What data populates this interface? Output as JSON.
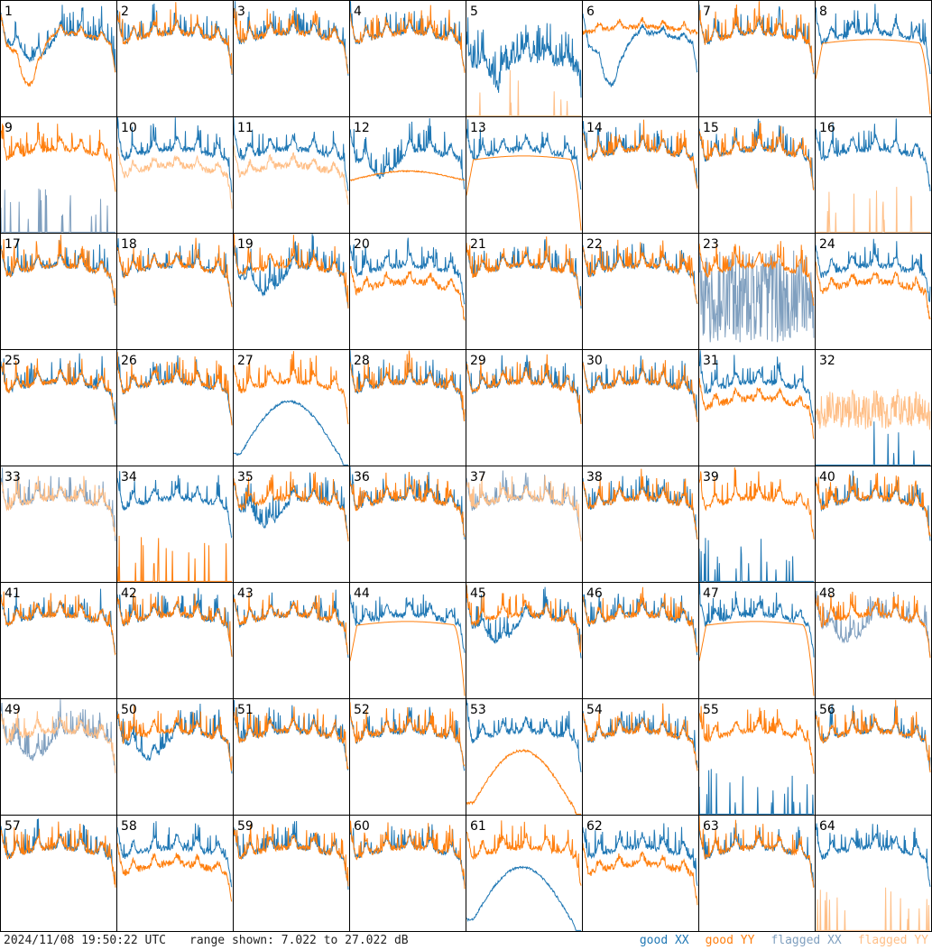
{
  "footer": {
    "timestamp": "2024/11/08 19:50:22 UTC",
    "range_text": "range shown: 7.022 to 27.022 dB"
  },
  "legend": [
    {
      "word": "good",
      "tag": "XX",
      "color": "#1f77b4"
    },
    {
      "word": "good",
      "tag": "YY",
      "color": "#ff7f0e"
    },
    {
      "word": "flagged",
      "tag": "XX",
      "color": "#7f9fbf"
    },
    {
      "word": "flagged",
      "tag": "YY",
      "color": "#ffbf87"
    }
  ],
  "chart_data": {
    "type": "line",
    "layout": "small-multiples 8x8",
    "y_range_db": [
      7.022,
      27.022
    ],
    "grid": false,
    "legend_position": "bottom-right",
    "panels": [
      {
        "id": "1",
        "xx": "good",
        "yy": "good",
        "xx_shape": "dip_mild",
        "yy_shape": "dip_deep"
      },
      {
        "id": "2",
        "xx": "good",
        "yy": "good",
        "xx_shape": "normal",
        "yy_shape": "normal"
      },
      {
        "id": "3",
        "xx": "good",
        "yy": "good",
        "xx_shape": "normal",
        "yy_shape": "normal"
      },
      {
        "id": "4",
        "xx": "good",
        "yy": "good",
        "xx_shape": "normal",
        "yy_shape": "normal"
      },
      {
        "id": "5",
        "xx": "good",
        "yy": "flagged",
        "xx_shape": "dip_noisy",
        "yy_shape": "spikes_low"
      },
      {
        "id": "6",
        "xx": "good",
        "yy": "good",
        "xx_shape": "dip_deep",
        "yy_shape": "high"
      },
      {
        "id": "7",
        "xx": "good",
        "yy": "good",
        "xx_shape": "normal",
        "yy_shape": "normal"
      },
      {
        "id": "8",
        "xx": "good",
        "yy": "good",
        "xx_shape": "normal",
        "yy_shape": "smooth_rolloff"
      },
      {
        "id": "9",
        "xx": "flagged",
        "yy": "good",
        "xx_shape": "spikes_low",
        "yy_shape": "normal"
      },
      {
        "id": "10",
        "xx": "good",
        "yy": "flagged",
        "xx_shape": "normal",
        "yy_shape": "low_band"
      },
      {
        "id": "11",
        "xx": "good",
        "yy": "flagged",
        "xx_shape": "normal",
        "yy_shape": "low_band"
      },
      {
        "id": "12",
        "xx": "good",
        "yy": "good",
        "xx_shape": "dip_mild",
        "yy_shape": "smooth_flat"
      },
      {
        "id": "13",
        "xx": "good",
        "yy": "good",
        "xx_shape": "normal",
        "yy_shape": "smooth_rolloff"
      },
      {
        "id": "14",
        "xx": "good",
        "yy": "good",
        "xx_shape": "normal",
        "yy_shape": "normal"
      },
      {
        "id": "15",
        "xx": "good",
        "yy": "good",
        "xx_shape": "normal",
        "yy_shape": "normal"
      },
      {
        "id": "16",
        "xx": "good",
        "yy": "flagged",
        "xx_shape": "normal",
        "yy_shape": "spikes_low"
      },
      {
        "id": "17",
        "xx": "good",
        "yy": "good",
        "xx_shape": "normal",
        "yy_shape": "normal"
      },
      {
        "id": "18",
        "xx": "good",
        "yy": "good",
        "xx_shape": "normal",
        "yy_shape": "normal"
      },
      {
        "id": "19",
        "xx": "good",
        "yy": "good",
        "xx_shape": "dip_mild",
        "yy_shape": "normal"
      },
      {
        "id": "20",
        "xx": "good",
        "yy": "good",
        "xx_shape": "normal",
        "yy_shape": "low_band"
      },
      {
        "id": "21",
        "xx": "good",
        "yy": "good",
        "xx_shape": "normal",
        "yy_shape": "normal"
      },
      {
        "id": "22",
        "xx": "good",
        "yy": "good",
        "xx_shape": "normal",
        "yy_shape": "normal"
      },
      {
        "id": "23",
        "xx": "flagged",
        "yy": "good",
        "xx_shape": "noisy_low",
        "yy_shape": "normal"
      },
      {
        "id": "24",
        "xx": "good",
        "yy": "good",
        "xx_shape": "normal",
        "yy_shape": "low_band"
      },
      {
        "id": "25",
        "xx": "good",
        "yy": "good",
        "xx_shape": "normal",
        "yy_shape": "normal"
      },
      {
        "id": "26",
        "xx": "good",
        "yy": "good",
        "xx_shape": "normal",
        "yy_shape": "normal"
      },
      {
        "id": "27",
        "xx": "good",
        "yy": "good",
        "xx_shape": "hump",
        "yy_shape": "normal"
      },
      {
        "id": "28",
        "xx": "good",
        "yy": "good",
        "xx_shape": "normal",
        "yy_shape": "normal"
      },
      {
        "id": "29",
        "xx": "good",
        "yy": "good",
        "xx_shape": "normal",
        "yy_shape": "normal"
      },
      {
        "id": "30",
        "xx": "good",
        "yy": "good",
        "xx_shape": "normal",
        "yy_shape": "normal"
      },
      {
        "id": "31",
        "xx": "good",
        "yy": "good",
        "xx_shape": "normal",
        "yy_shape": "low_band"
      },
      {
        "id": "32",
        "xx": "good",
        "yy": "flagged",
        "xx_shape": "flat_zero",
        "yy_shape": "noisy_mid"
      },
      {
        "id": "33",
        "xx": "flagged",
        "yy": "flagged",
        "xx_shape": "normal",
        "yy_shape": "normal"
      },
      {
        "id": "34",
        "xx": "good",
        "yy": "good",
        "xx_shape": "normal",
        "yy_shape": "spikes_low"
      },
      {
        "id": "35",
        "xx": "good",
        "yy": "good",
        "xx_shape": "dip_mild",
        "yy_shape": "normal"
      },
      {
        "id": "36",
        "xx": "good",
        "yy": "good",
        "xx_shape": "normal",
        "yy_shape": "normal"
      },
      {
        "id": "37",
        "xx": "flagged",
        "yy": "flagged",
        "xx_shape": "normal",
        "yy_shape": "normal"
      },
      {
        "id": "38",
        "xx": "good",
        "yy": "good",
        "xx_shape": "normal",
        "yy_shape": "normal"
      },
      {
        "id": "39",
        "xx": "good",
        "yy": "good",
        "xx_shape": "spikes_low",
        "yy_shape": "normal"
      },
      {
        "id": "40",
        "xx": "good",
        "yy": "good",
        "xx_shape": "normal",
        "yy_shape": "normal"
      },
      {
        "id": "41",
        "xx": "good",
        "yy": "good",
        "xx_shape": "normal",
        "yy_shape": "normal"
      },
      {
        "id": "42",
        "xx": "good",
        "yy": "good",
        "xx_shape": "normal",
        "yy_shape": "normal"
      },
      {
        "id": "43",
        "xx": "good",
        "yy": "good",
        "xx_shape": "normal",
        "yy_shape": "normal"
      },
      {
        "id": "44",
        "xx": "good",
        "yy": "good",
        "xx_shape": "normal",
        "yy_shape": "smooth_rolloff"
      },
      {
        "id": "45",
        "xx": "good",
        "yy": "good",
        "xx_shape": "dip_mild",
        "yy_shape": "normal"
      },
      {
        "id": "46",
        "xx": "good",
        "yy": "good",
        "xx_shape": "normal",
        "yy_shape": "normal"
      },
      {
        "id": "47",
        "xx": "good",
        "yy": "good",
        "xx_shape": "normal",
        "yy_shape": "smooth_rolloff"
      },
      {
        "id": "48",
        "xx": "flagged",
        "yy": "good",
        "xx_shape": "dip_mild",
        "yy_shape": "normal"
      },
      {
        "id": "49",
        "xx": "flagged",
        "yy": "flagged",
        "xx_shape": "dip_mild",
        "yy_shape": "normal"
      },
      {
        "id": "50",
        "xx": "good",
        "yy": "good",
        "xx_shape": "dip_mild",
        "yy_shape": "normal"
      },
      {
        "id": "51",
        "xx": "good",
        "yy": "good",
        "xx_shape": "normal",
        "yy_shape": "normal"
      },
      {
        "id": "52",
        "xx": "good",
        "yy": "good",
        "xx_shape": "normal",
        "yy_shape": "normal"
      },
      {
        "id": "53",
        "xx": "good",
        "yy": "good",
        "xx_shape": "normal",
        "yy_shape": "hump"
      },
      {
        "id": "54",
        "xx": "good",
        "yy": "good",
        "xx_shape": "normal",
        "yy_shape": "normal"
      },
      {
        "id": "55",
        "xx": "good",
        "yy": "good",
        "xx_shape": "spikes_low",
        "yy_shape": "normal"
      },
      {
        "id": "56",
        "xx": "good",
        "yy": "good",
        "xx_shape": "normal",
        "yy_shape": "normal"
      },
      {
        "id": "57",
        "xx": "good",
        "yy": "good",
        "xx_shape": "normal",
        "yy_shape": "normal"
      },
      {
        "id": "58",
        "xx": "good",
        "yy": "good",
        "xx_shape": "normal",
        "yy_shape": "low_band"
      },
      {
        "id": "59",
        "xx": "good",
        "yy": "good",
        "xx_shape": "normal",
        "yy_shape": "normal"
      },
      {
        "id": "60",
        "xx": "good",
        "yy": "good",
        "xx_shape": "normal",
        "yy_shape": "normal"
      },
      {
        "id": "61",
        "xx": "good",
        "yy": "good",
        "xx_shape": "hump",
        "yy_shape": "normal"
      },
      {
        "id": "62",
        "xx": "good",
        "yy": "good",
        "xx_shape": "normal",
        "yy_shape": "low_band"
      },
      {
        "id": "63",
        "xx": "good",
        "yy": "good",
        "xx_shape": "normal",
        "yy_shape": "normal"
      },
      {
        "id": "64",
        "xx": "good",
        "yy": "flagged",
        "xx_shape": "normal",
        "yy_shape": "spikes_low"
      }
    ]
  }
}
